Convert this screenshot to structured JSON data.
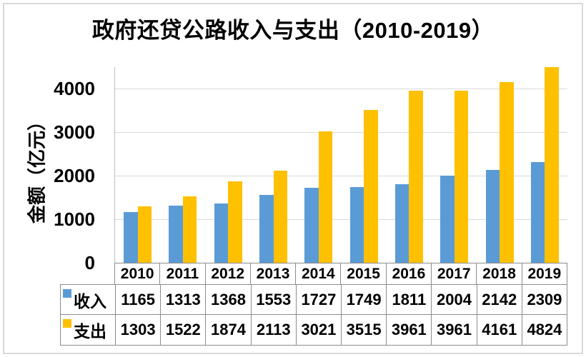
{
  "title": "政府还贷公路收入与支出（2010-2019）",
  "chart_data": {
    "type": "bar",
    "title": "政府还贷公路收入与支出（2010-2019）",
    "categories": [
      "2010",
      "2011",
      "2012",
      "2013",
      "2014",
      "2015",
      "2016",
      "2017",
      "2018",
      "2019"
    ],
    "series": [
      {
        "key": "income",
        "name": "收入",
        "color": "#5B9BD5",
        "values": [
          1165,
          1313,
          1368,
          1553,
          1727,
          1749,
          1811,
          2004,
          2142,
          2309
        ]
      },
      {
        "key": "expense",
        "name": "支出",
        "color": "#FFC000",
        "values": [
          1303,
          1522,
          1874,
          2113,
          3021,
          3515,
          3961,
          3961,
          4161,
          4824
        ]
      }
    ],
    "xlabel": "",
    "ylabel": "金额（亿元）",
    "ylim": [
      0,
      4500
    ],
    "yticks": [
      0,
      1000,
      2000,
      3000,
      4000
    ],
    "grid": true,
    "legend_position": "data-table-left",
    "data_table": true
  },
  "colors": {
    "income": "#5B9BD5",
    "expense": "#FFC000",
    "gridline": "#D9D9D9",
    "axis_line": "#BFBFBF",
    "table_border": "#8C8C8C",
    "text": "#000000",
    "frame_border": "#D9D9D9",
    "background": "#FFFFFF"
  }
}
